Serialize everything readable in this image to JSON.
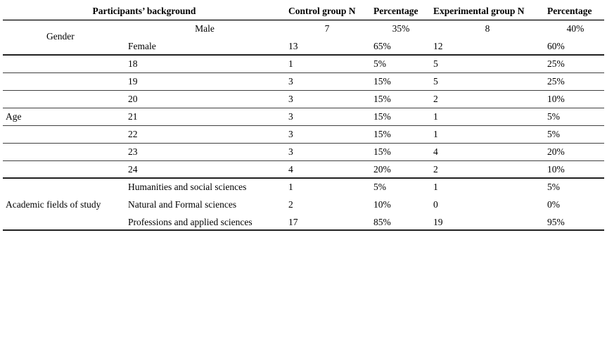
{
  "table": {
    "header": [
      "Participants’ background",
      "Control group N",
      "Percentage",
      "Experimental group N",
      "Percentage"
    ],
    "groups": [
      {
        "label": "Gender",
        "rows": [
          [
            "Male",
            "7",
            "35%",
            "8",
            "40%"
          ],
          [
            "Female",
            "13",
            "65%",
            "12",
            "60%"
          ]
        ]
      },
      {
        "label": "Age",
        "rows": [
          [
            "18",
            "1",
            "5%",
            "5",
            "25%"
          ],
          [
            "19",
            "3",
            "15%",
            "5",
            "25%"
          ],
          [
            "20",
            "3",
            "15%",
            "2",
            "10%"
          ],
          [
            "21",
            "3",
            "15%",
            "1",
            "5%"
          ],
          [
            "22",
            "3",
            "15%",
            "1",
            "5%"
          ],
          [
            "23",
            "3",
            "15%",
            "4",
            "20%"
          ],
          [
            "24",
            "4",
            "20%",
            "2",
            "10%"
          ]
        ]
      },
      {
        "label": "Academic fields of study",
        "rows": [
          [
            "Humanities and social sciences",
            "1",
            "5%",
            "1",
            "5%"
          ],
          [
            "Natural and Formal sciences",
            "2",
            "10%",
            "0",
            "0%"
          ],
          [
            "Professions and applied sciences",
            "17",
            "85%",
            "19",
            "95%"
          ]
        ]
      }
    ]
  }
}
